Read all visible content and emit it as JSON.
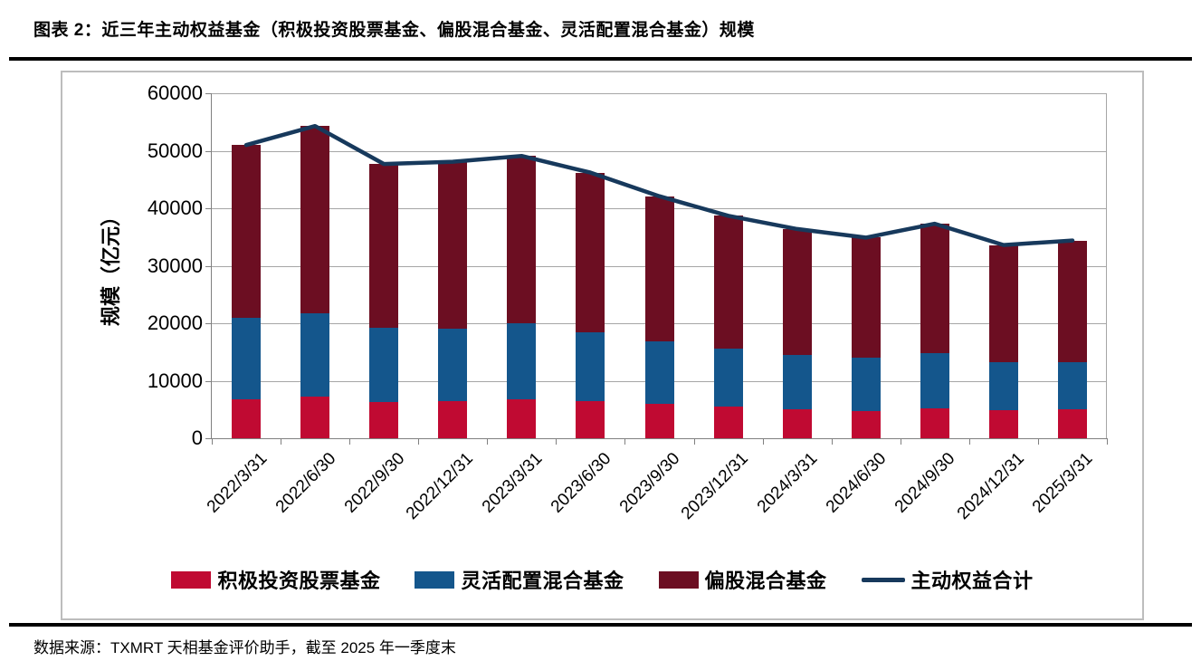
{
  "page": {
    "title": "图表 2：近三年主动权益基金（积极投资股票基金、偏股混合基金、灵活配置混合基金）规模",
    "source_note": "数据来源：TXMRT 天相基金评价助手，截至 2025 年一季度末"
  },
  "colors": {
    "stock_fund": "#C00A32",
    "flexible_fund": "#14568C",
    "hybrid_fund": "#6C0E22",
    "total_line": "#17395C",
    "gridline": "#A6A6A6",
    "axis": "#808080",
    "chart_border": "#BDBDBD"
  },
  "chart_data": {
    "type": "bar",
    "subtype": "stacked-bar-with-line",
    "title": "",
    "xlabel": "",
    "ylabel": "规模（亿元）",
    "ylim": [
      0,
      60000
    ],
    "yticks": [
      0,
      10000,
      20000,
      30000,
      40000,
      50000,
      60000
    ],
    "grid": true,
    "legend_position": "bottom",
    "categories": [
      "2022/3/31",
      "2022/6/30",
      "2022/9/30",
      "2022/12/31",
      "2023/3/31",
      "2023/6/30",
      "2023/9/30",
      "2023/12/31",
      "2024/3/31",
      "2024/6/30",
      "2024/9/30",
      "2024/12/31",
      "2025/3/31"
    ],
    "series": [
      {
        "name": "积极投资股票基金",
        "kind": "bar",
        "stack_order": 0,
        "color_key": "stock_fund",
        "values": [
          6700,
          7200,
          6300,
          6400,
          6800,
          6500,
          6000,
          5500,
          5100,
          4700,
          5200,
          4900,
          5100
        ]
      },
      {
        "name": "灵活配置混合基金",
        "kind": "bar",
        "stack_order": 1,
        "color_key": "flexible_fund",
        "values": [
          14200,
          14500,
          12900,
          12600,
          13200,
          12000,
          10900,
          10100,
          9400,
          9300,
          9600,
          8300,
          8200
        ]
      },
      {
        "name": "偏股混合基金",
        "kind": "bar",
        "stack_order": 2,
        "color_key": "hybrid_fund",
        "values": [
          30100,
          32600,
          28500,
          29100,
          29100,
          27700,
          25200,
          23100,
          21900,
          20900,
          22500,
          20400,
          21100
        ]
      },
      {
        "name": "主动权益合计",
        "kind": "line",
        "color_key": "total_line",
        "values": [
          51000,
          54300,
          47700,
          48100,
          49100,
          46200,
          42100,
          38700,
          36400,
          34900,
          37300,
          33600,
          34400
        ]
      }
    ],
    "legend_order": [
      "积极投资股票基金",
      "灵活配置混合基金",
      "偏股混合基金",
      "主动权益合计"
    ]
  }
}
